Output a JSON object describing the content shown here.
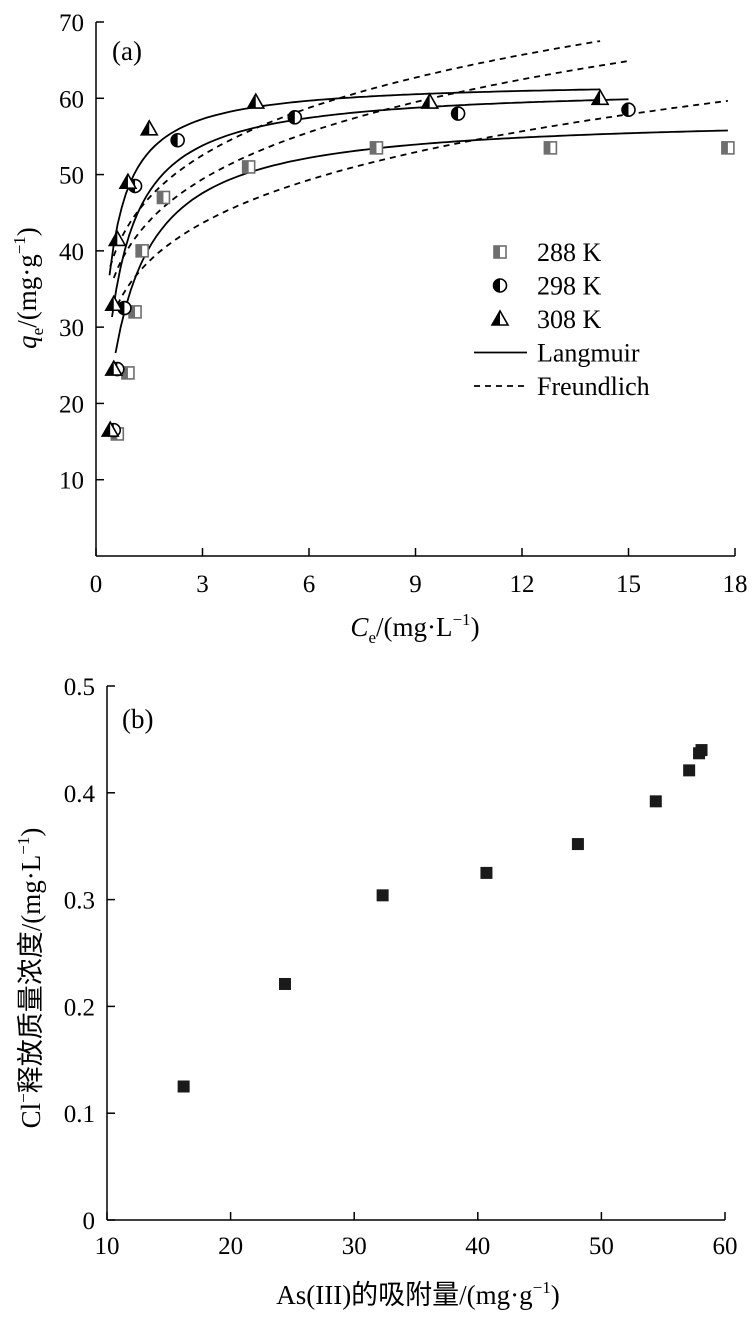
{
  "chart_data": [
    {
      "type": "scatter",
      "panel_label": "(a)",
      "xlabel": {
        "main": "C",
        "sub": "e",
        "rest": "/(mg·L",
        "sup": "−1",
        "close": ")"
      },
      "ylabel": {
        "main": "q",
        "sub": "e",
        "rest": "/(mg·g",
        "sup": "−1",
        "close": ")"
      },
      "xlim": [
        0,
        18
      ],
      "ylim": [
        0,
        70
      ],
      "xticks": [
        0,
        3,
        6,
        9,
        12,
        15,
        18
      ],
      "yticks": [
        10,
        20,
        30,
        40,
        50,
        60,
        70
      ],
      "grid": false,
      "legend_position": "right-center",
      "series": [
        {
          "name": "288 K",
          "marker": "half-square",
          "x": [
            0.6,
            0.9,
            1.1,
            1.3,
            1.9,
            4.3,
            7.9,
            12.8,
            17.8
          ],
          "y": [
            16.0,
            24.0,
            32.0,
            40.0,
            47.0,
            51.0,
            53.5,
            53.5,
            53.5
          ]
        },
        {
          "name": "298 K",
          "marker": "half-circle",
          "x": [
            0.5,
            0.6,
            0.8,
            1.1,
            2.3,
            5.6,
            10.2,
            15.0
          ],
          "y": [
            16.5,
            24.5,
            32.5,
            48.5,
            54.5,
            57.5,
            58.0,
            58.5
          ]
        },
        {
          "name": "308 K",
          "marker": "half-triangle",
          "x": [
            0.4,
            0.5,
            0.5,
            0.6,
            0.9,
            1.5,
            4.5,
            9.4,
            14.2
          ],
          "y": [
            16.5,
            24.5,
            33.0,
            41.5,
            49.0,
            56.0,
            59.5,
            59.5,
            60.0
          ]
        }
      ],
      "fits": [
        {
          "name": "Langmuir",
          "style": "solid",
          "curves": [
            {
              "for": "288 K",
              "qm": 57.8,
              "K": 1.55,
              "xrange": [
                0.55,
                17.8
              ]
            },
            {
              "for": "298 K",
              "qm": 61.6,
              "K": 2.3,
              "xrange": [
                0.45,
                15.0
              ]
            },
            {
              "for": "308 K",
              "qm": 62.3,
              "K": 3.8,
              "xrange": [
                0.38,
                14.2
              ]
            }
          ]
        },
        {
          "name": "Freundlich",
          "style": "dashed",
          "curves": [
            {
              "for": "288 K",
              "Kf": 36.0,
              "n": 5.7,
              "xrange": [
                0.6,
                17.8
              ]
            },
            {
              "for": "298 K",
              "Kf": 41.0,
              "n": 5.9,
              "xrange": [
                0.5,
                15.0
              ]
            },
            {
              "for": "308 K",
              "Kf": 44.0,
              "n": 6.2,
              "xrange": [
                0.4,
                14.2
              ]
            }
          ]
        }
      ]
    },
    {
      "type": "scatter",
      "panel_label": "(b)",
      "xlabel": "As(III)的吸附量/(mg·g",
      "xlabel_sup": "−1",
      "xlabel_close": ")",
      "ylabel": "Cl",
      "ylabel_sup": "−",
      "ylabel_rest": "释放质量浓度/(mg·L",
      "ylabel_sup2": "−1",
      "ylabel_close": ")",
      "xlim": [
        10,
        60
      ],
      "ylim": [
        0,
        0.5
      ],
      "xticks": [
        10,
        20,
        30,
        40,
        50,
        60
      ],
      "yticks": [
        0,
        0.1,
        0.2,
        0.3,
        0.4,
        0.5
      ],
      "ytick_labels": [
        "0",
        "0.1",
        "0.2",
        "0.3",
        "0.4",
        "0.5"
      ],
      "grid": false,
      "series": [
        {
          "marker": "filled-square",
          "x": [
            16.2,
            24.4,
            32.3,
            40.7,
            48.1,
            54.4,
            57.1,
            57.9,
            58.1
          ],
          "y": [
            0.125,
            0.221,
            0.304,
            0.325,
            0.352,
            0.392,
            0.421,
            0.437,
            0.44
          ]
        }
      ]
    }
  ]
}
